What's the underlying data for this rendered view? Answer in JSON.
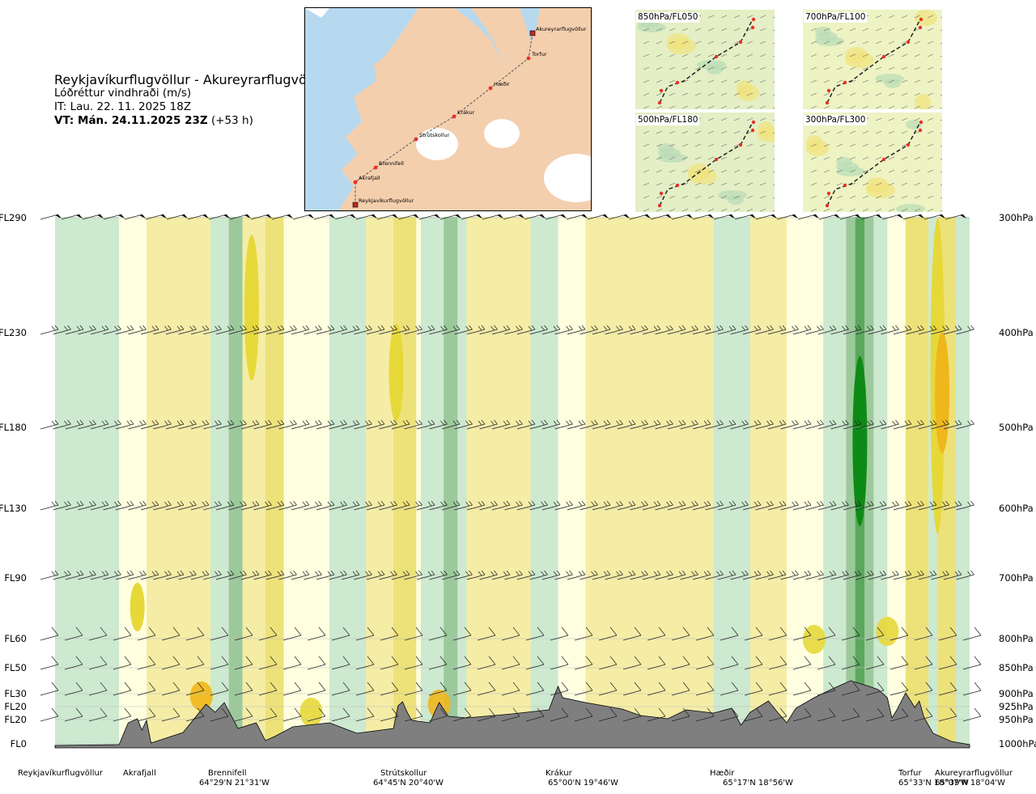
{
  "header": {
    "title": "Reykjavíkurflugvöllur - Akureyrarflugvöllur",
    "subtitle": "Lóðréttur vindhraði (m/s)",
    "init_time": "IT: Lau. 22. 11. 2025 18Z",
    "valid_prefix": "VT: Mán. 24.11.2025 23Z",
    "valid_suffix": " (+53 h)"
  },
  "overview_map": {
    "route_points": [
      {
        "name": "Akureyrarflugvöllur",
        "kind": "airport"
      },
      {
        "name": "Torfur",
        "kind": "waypoint"
      },
      {
        "name": "Hæðir",
        "kind": "waypoint"
      },
      {
        "name": "Krákur",
        "kind": "waypoint"
      },
      {
        "name": "Strútskollur",
        "kind": "waypoint"
      },
      {
        "name": "Brennifell",
        "kind": "waypoint"
      },
      {
        "name": "Akrafjall",
        "kind": "waypoint"
      },
      {
        "name": "Reykjavíkurflugvöllur",
        "kind": "airport"
      }
    ],
    "colors": {
      "sea": "#b6d9ef",
      "land": "#f4cfae",
      "glacier": "#ffffff",
      "route": "#555555",
      "waypoint": "#e8302a"
    }
  },
  "mini_maps": [
    {
      "label": "850hPa/FL050"
    },
    {
      "label": "700hPa/FL100"
    },
    {
      "label": "500hPa/FL180"
    },
    {
      "label": "300hPa/FL300"
    }
  ],
  "chart_data": {
    "type": "heatmap",
    "title": "Reykjavíkurflugvöllur - Akureyrarflugvöllur",
    "variable": "Lóðréttur vindhraði (m/s)",
    "x_axis": "route distance (waypoints)",
    "y_axis": "pressure level",
    "levels": [
      {
        "fl": "FL290",
        "hpa": "300hPa",
        "pressure": 300
      },
      {
        "fl": "FL230",
        "hpa": "400hPa",
        "pressure": 400
      },
      {
        "fl": "FL180",
        "hpa": "500hPa",
        "pressure": 500
      },
      {
        "fl": "FL130",
        "hpa": "600hPa",
        "pressure": 600
      },
      {
        "fl": "FL90",
        "hpa": "700hPa",
        "pressure": 700
      },
      {
        "fl": "FL60",
        "hpa": "800hPa",
        "pressure": 800
      },
      {
        "fl": "FL50",
        "hpa": "850hPa",
        "pressure": 850
      },
      {
        "fl": "FL30",
        "hpa": "900hPa",
        "pressure": 900
      },
      {
        "fl": "FL20",
        "hpa": "925hPa",
        "pressure": 925
      },
      {
        "fl": "FL20",
        "hpa": "950hPa",
        "pressure": 950
      },
      {
        "fl": "FL0",
        "hpa": "1000hPa",
        "pressure": 1000
      }
    ],
    "stations": [
      {
        "name": "Reykjavíkurflugvöllur",
        "coord": "",
        "frac": 0.0
      },
      {
        "name": "Akrafjall",
        "coord": "",
        "frac": 0.09
      },
      {
        "name": "Brennifell",
        "coord": "64°29'N 21°31'W",
        "frac": 0.186
      },
      {
        "name": "Strútskollur",
        "coord": "64°45'N 20°40'W",
        "frac": 0.372
      },
      {
        "name": "Krákur",
        "coord": "65°00'N 19°46'W",
        "frac": 0.555
      },
      {
        "name": "Hæðir",
        "coord": "65°17'N 18°56'W",
        "frac": 0.735
      },
      {
        "name": "Torfur",
        "coord": "65°33'N 18°07'W",
        "frac": 0.932
      },
      {
        "name": "Akureyrarflugvöllur",
        "coord": "65°39'N 18°04'W",
        "frac": 1.0
      }
    ],
    "color_scale": {
      "strong_down": "#0e8a16",
      "moderate_down": "#5aa85c",
      "weak_down": "#9cc99b",
      "slight_down": "#cde9d0",
      "near_zero": "#ffffe0",
      "slight_up": "#f5eda6",
      "weak_up": "#ede27a",
      "moderate_up": "#e7d83a",
      "strong_up": "#efb71b"
    },
    "terrain_color": "#7f7f7f"
  }
}
